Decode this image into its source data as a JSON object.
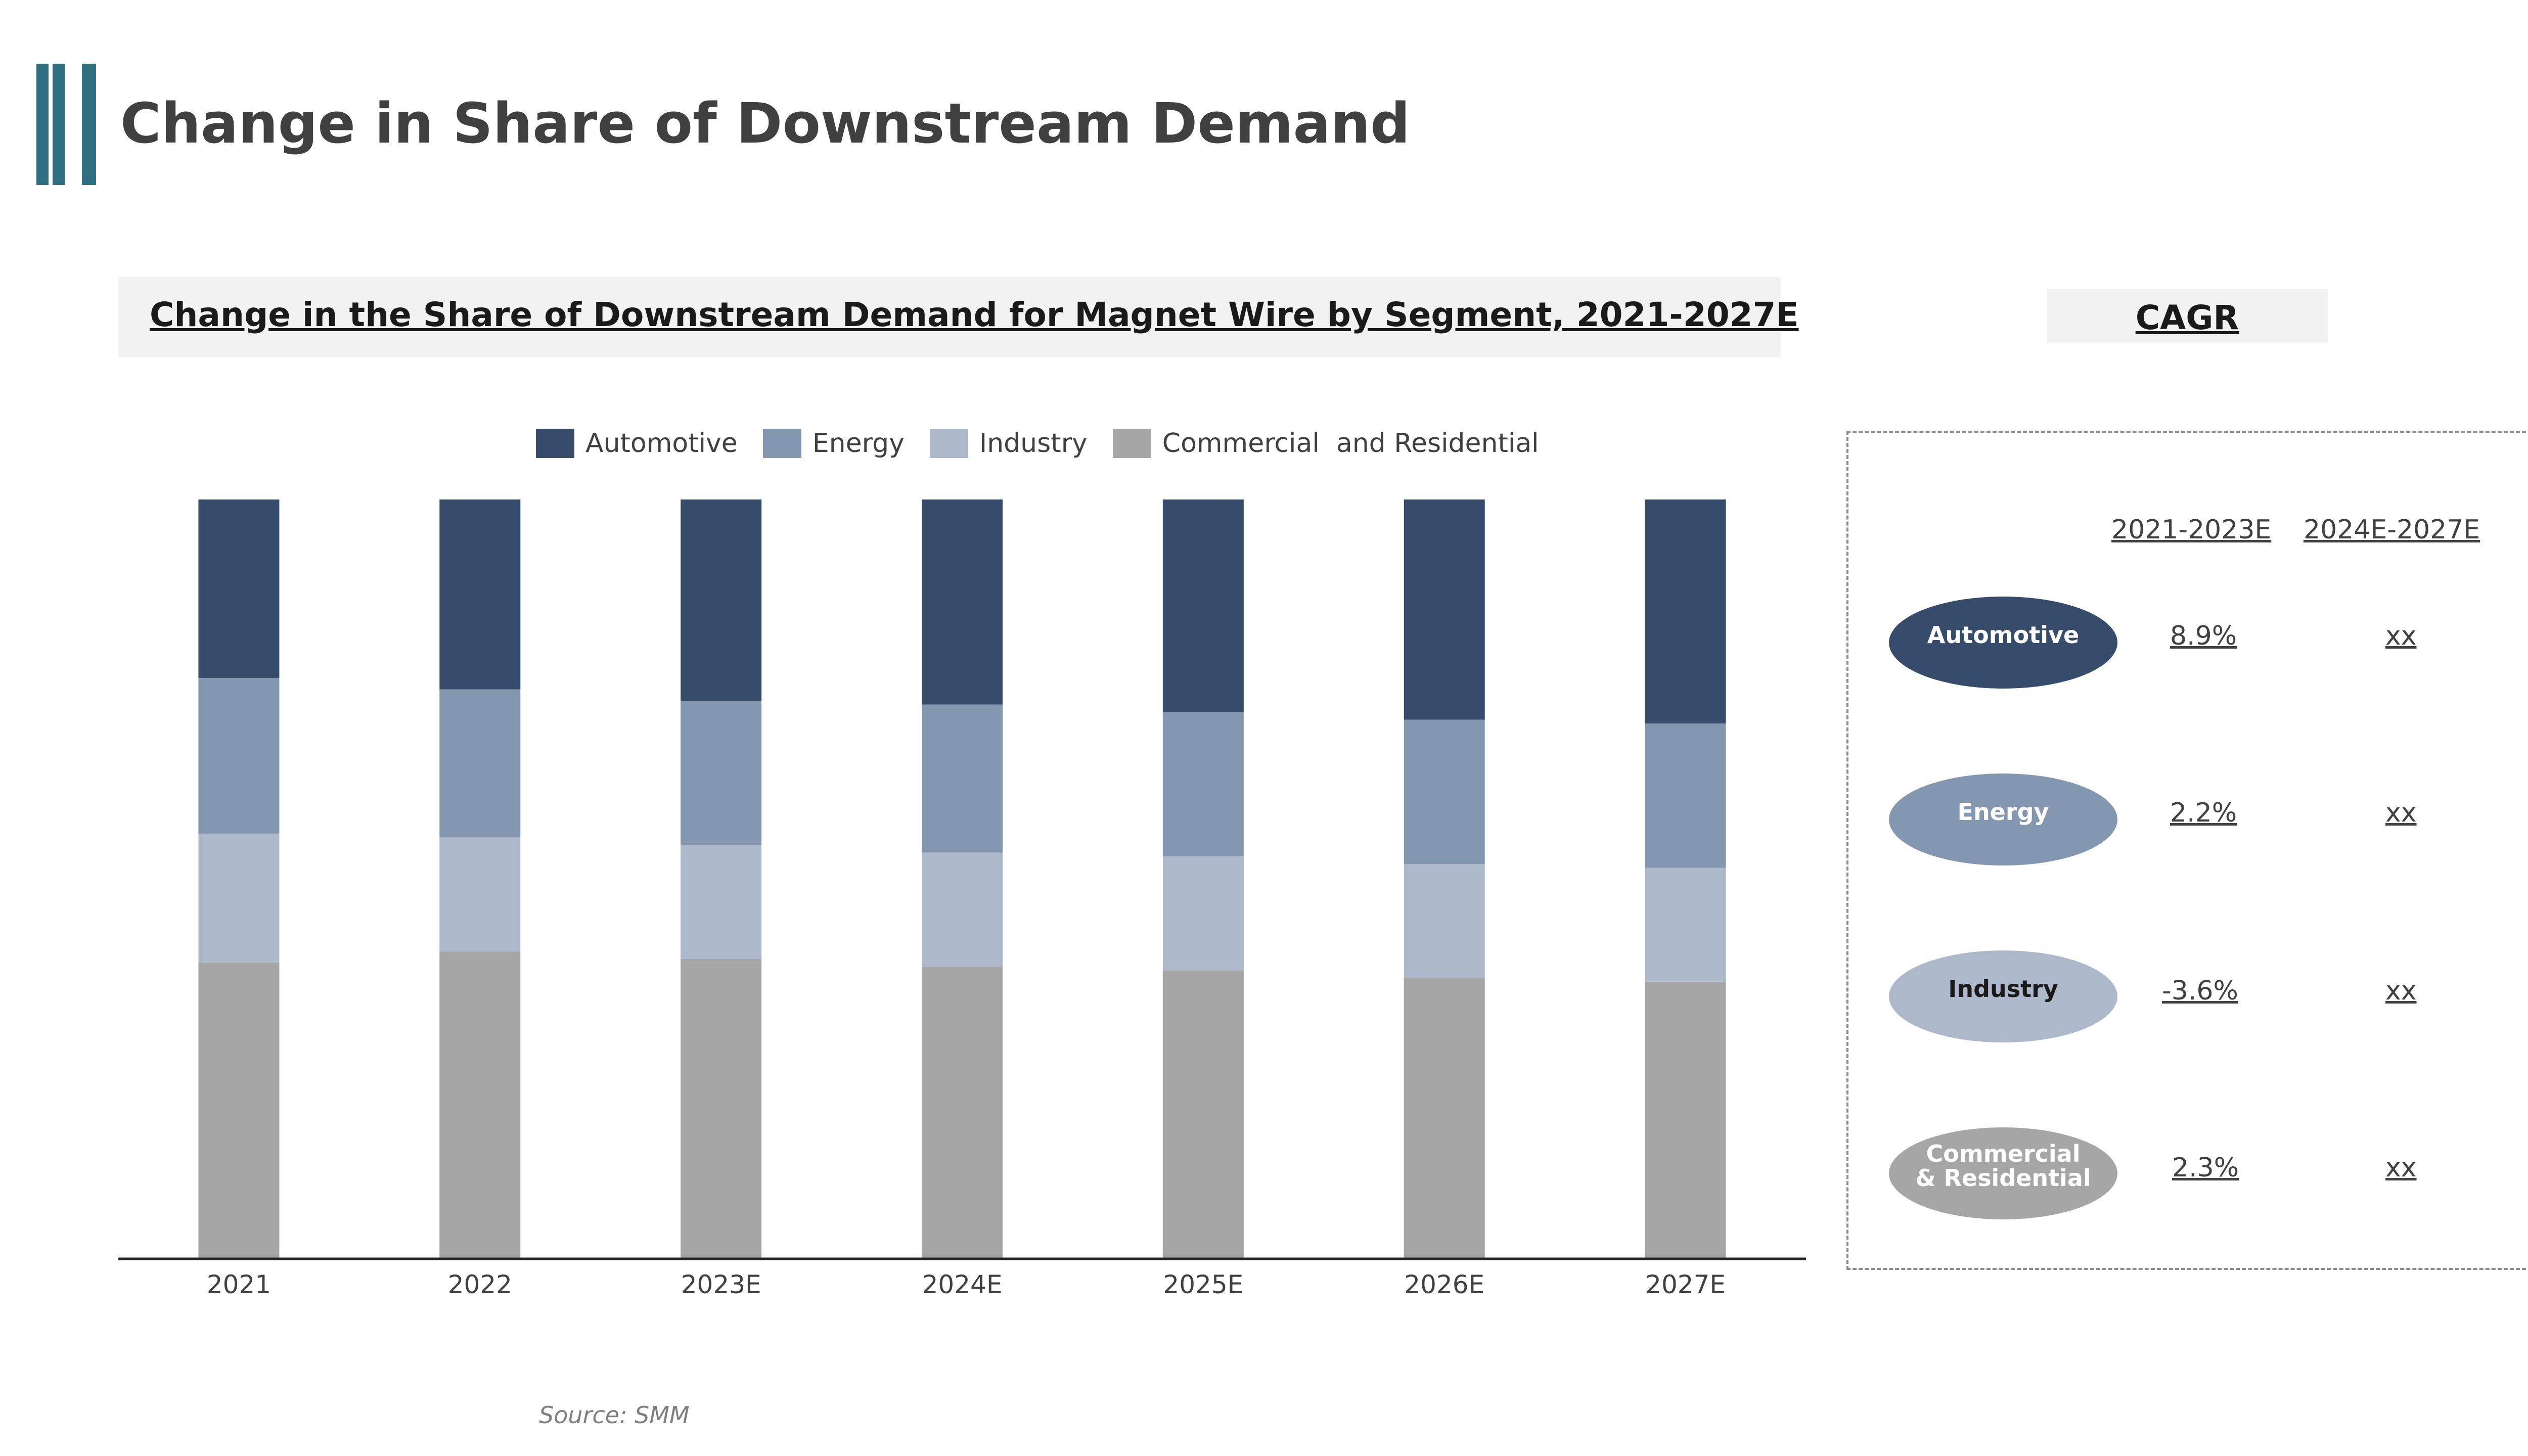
{
  "header": {
    "title": "Change in Share of Downstream Demand",
    "accent_color": "#2e7080"
  },
  "chart_title": "Change in the Share of Downstream Demand for Magnet Wire by Segment, 2021-2027E",
  "source": "Source: SMM",
  "chart_data": {
    "type": "bar",
    "stacked": true,
    "percent_stacked": true,
    "categories": [
      "2021",
      "2022",
      "2023E",
      "2024E",
      "2025E",
      "2026E",
      "2027E"
    ],
    "ylim": [
      0,
      100
    ],
    "y_axis_shown": false,
    "grid": false,
    "legend_position": "top",
    "series": [
      {
        "name": "Commercial  and Residential",
        "color": "#a6a6a6",
        "values": [
          39.0,
          40.5,
          39.5,
          38.5,
          38.0,
          37.0,
          36.5
        ]
      },
      {
        "name": "Industry",
        "color": "#adb9ca",
        "values": [
          17.0,
          15.0,
          15.0,
          15.0,
          15.0,
          15.0,
          15.0
        ]
      },
      {
        "name": "Energy",
        "color": "#8497b0",
        "values": [
          20.5,
          19.5,
          19.0,
          19.5,
          19.0,
          19.0,
          19.0
        ]
      },
      {
        "name": "Automotive",
        "color": "#374c6b",
        "values": [
          23.5,
          25.0,
          26.5,
          27.0,
          28.0,
          29.0,
          29.5
        ]
      }
    ],
    "legend_order": [
      "Automotive",
      "Energy",
      "Industry",
      "Commercial  and Residential"
    ]
  },
  "cagr": {
    "title": "CAGR",
    "periods": [
      "2021-2023E",
      "2024E-2027E"
    ],
    "rows": [
      {
        "segment": "Automotive",
        "color": "#374c6b",
        "text_color": "#ffffff",
        "v1": "8.9%",
        "v2": "xx"
      },
      {
        "segment": "Energy",
        "color": "#8497b0",
        "text_color": "#ffffff",
        "v1": "2.2%",
        "v2": "xx"
      },
      {
        "segment": "Industry",
        "color": "#adb9ca",
        "text_color": "#1a1a1a",
        "v1": "-3.6%",
        "v2": "xx"
      },
      {
        "segment": "Commercial & Residential",
        "color": "#a6a6a6",
        "text_color": "#ffffff",
        "v1": "2.3%",
        "v2": "xx"
      }
    ]
  }
}
